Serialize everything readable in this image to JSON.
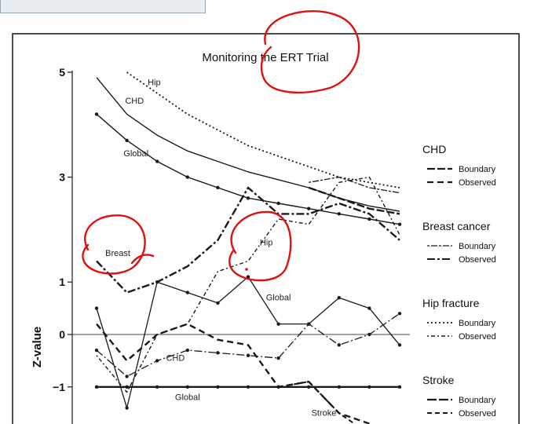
{
  "chart_data": {
    "type": "line",
    "title": "Monitoring the ERT Trial",
    "ylabel": "Z-value",
    "xlabel": "",
    "ylim": [
      -1.7,
      5.1
    ],
    "yticks": [
      -1,
      0,
      1,
      3,
      5
    ],
    "x": [
      1,
      2,
      3,
      4,
      5,
      6,
      7,
      8,
      9,
      10,
      11
    ],
    "grid": false,
    "legend_position": "right",
    "series": [
      {
        "name": "CHD Boundary",
        "group": "CHD",
        "kind": "Boundary",
        "dash": "10,3",
        "width": 2.4,
        "values": [
          null,
          null,
          null,
          null,
          null,
          null,
          null,
          2.8,
          2.6,
          2.4,
          2.3
        ]
      },
      {
        "name": "CHD Observed",
        "group": "CHD",
        "kind": "Observed",
        "dash": "8,5",
        "width": 2.4,
        "values": [
          0.2,
          -0.5,
          0.0,
          0.2,
          -0.1,
          -0.2,
          -1.0,
          -0.9,
          -1.5,
          -1.7,
          null
        ]
      },
      {
        "name": "Breast cancer Boundary",
        "group": "Breast cancer",
        "kind": "Boundary",
        "dash": "3,2,8,2",
        "width": 1.3,
        "values": [
          null,
          null,
          null,
          null,
          null,
          null,
          null,
          2.9,
          3.0,
          2.8,
          2.7
        ]
      },
      {
        "name": "Breast cancer Observed",
        "group": "Breast cancer",
        "kind": "Observed",
        "dash": "10,3,3,3",
        "width": 2.4,
        "values": [
          1.4,
          0.8,
          1.0,
          1.3,
          1.8,
          2.8,
          2.3,
          2.3,
          2.5,
          2.3,
          1.8
        ]
      },
      {
        "name": "Hip fracture Boundary",
        "group": "Hip fracture",
        "kind": "Boundary",
        "dash": "2,3",
        "width": 1.8,
        "values": [
          null,
          5.0,
          4.6,
          4.2,
          3.9,
          3.6,
          3.4,
          3.2,
          3.0,
          2.9,
          2.8
        ]
      },
      {
        "name": "Hip fracture Observed",
        "group": "Hip fracture",
        "kind": "Observed",
        "dash": "2,3,5,3",
        "width": 1.4,
        "values": [
          -0.4,
          -1.1,
          0.0,
          0.2,
          1.2,
          1.4,
          2.2,
          2.1,
          2.9,
          3.0,
          1.9
        ]
      },
      {
        "name": "Stroke Boundary",
        "group": "Stroke",
        "kind": "Boundary",
        "dash": "12,3",
        "width": 2.4,
        "values": [
          null,
          null,
          null,
          null,
          null,
          null,
          null,
          null,
          null,
          null,
          null
        ]
      },
      {
        "name": "Stroke Observed",
        "group": "Stroke",
        "kind": "Observed",
        "dash": "6,4",
        "width": 2.0,
        "values": [
          null,
          null,
          null,
          null,
          null,
          null,
          -1.0,
          -0.9,
          -1.5,
          -1.9,
          null
        ]
      },
      {
        "name": "Global boundary",
        "group": "Global",
        "kind": "Boundary",
        "dash": "",
        "width": 1.4,
        "markers": true,
        "values": [
          4.2,
          3.7,
          3.3,
          3.0,
          2.8,
          2.6,
          2.5,
          2.4,
          2.3,
          2.2,
          2.1
        ]
      },
      {
        "name": "CHD boundary",
        "group": "CHD",
        "kind": "Boundary",
        "dash": "",
        "width": 1.4,
        "values": [
          4.9,
          4.2,
          3.8,
          3.5,
          3.3,
          3.1,
          2.95,
          2.8,
          2.6,
          2.45,
          2.35
        ]
      },
      {
        "name": "Global observed",
        "group": "Global",
        "kind": "Observed",
        "dash": "",
        "width": 1.3,
        "markers": true,
        "values": [
          0.5,
          -1.4,
          1.0,
          0.8,
          0.6,
          1.1,
          0.2,
          0.2,
          0.7,
          0.5,
          -0.2
        ]
      },
      {
        "name": "CHD observed",
        "group": "CHD",
        "kind": "Observed",
        "dash": "10,3,2,3",
        "width": 1.3,
        "markers": true,
        "values": [
          -0.3,
          -0.8,
          -0.5,
          -0.3,
          -0.35,
          -0.4,
          -0.45,
          0.2,
          -0.2,
          0.0,
          0.4
        ]
      },
      {
        "name": "Global lower boundary",
        "group": "Global",
        "kind": "Boundary",
        "dash": "",
        "width": 2.4,
        "markers": true,
        "values": [
          -1.0,
          -1.0,
          -1.0,
          -1.0,
          -1.0,
          -1.0,
          -1.0,
          -1.0,
          -1.0,
          -1.0,
          -1.0
        ]
      }
    ],
    "annotations": [
      {
        "text": "Hip",
        "x": 2.9,
        "y": 4.75
      },
      {
        "text": "CHD",
        "x": 2.25,
        "y": 4.4
      },
      {
        "text": "Global",
        "x": 2.3,
        "y": 3.4
      },
      {
        "text": "Breast",
        "x": 1.7,
        "y": 1.5
      },
      {
        "text": "Hip",
        "x": 6.6,
        "y": 1.7
      },
      {
        "text": "Global",
        "x": 7.0,
        "y": 0.65
      },
      {
        "text": "CHD",
        "x": 3.6,
        "y": -0.5
      },
      {
        "text": "Global",
        "x": 4.0,
        "y": -1.25
      },
      {
        "text": "Stroke",
        "x": 8.5,
        "y": -1.55
      }
    ],
    "legend_groups": [
      {
        "title": "CHD",
        "entries": [
          {
            "label": "Boundary",
            "dash": "10,3",
            "width": 2.2
          },
          {
            "label": "Observed",
            "dash": "8,5",
            "width": 2.2
          }
        ]
      },
      {
        "title": "Breast cancer",
        "entries": [
          {
            "label": "Boundary",
            "dash": "3,2,8,2",
            "width": 1.3
          },
          {
            "label": "Observed",
            "dash": "10,3,3,3",
            "width": 2.0
          }
        ]
      },
      {
        "title": "Hip fracture",
        "entries": [
          {
            "label": "Boundary",
            "dash": "2,3",
            "width": 1.8
          },
          {
            "label": "Observed",
            "dash": "2,3,5,3",
            "width": 1.4
          }
        ]
      },
      {
        "title": "Stroke",
        "entries": [
          {
            "label": "Boundary",
            "dash": "12,3",
            "width": 2.2
          },
          {
            "label": "Observed",
            "dash": "6,4",
            "width": 2.0
          }
        ]
      }
    ]
  },
  "colors": {
    "line": "#1a1a1a",
    "annotation_ink": "#e01010",
    "frame_bg": "#e9eef3"
  }
}
